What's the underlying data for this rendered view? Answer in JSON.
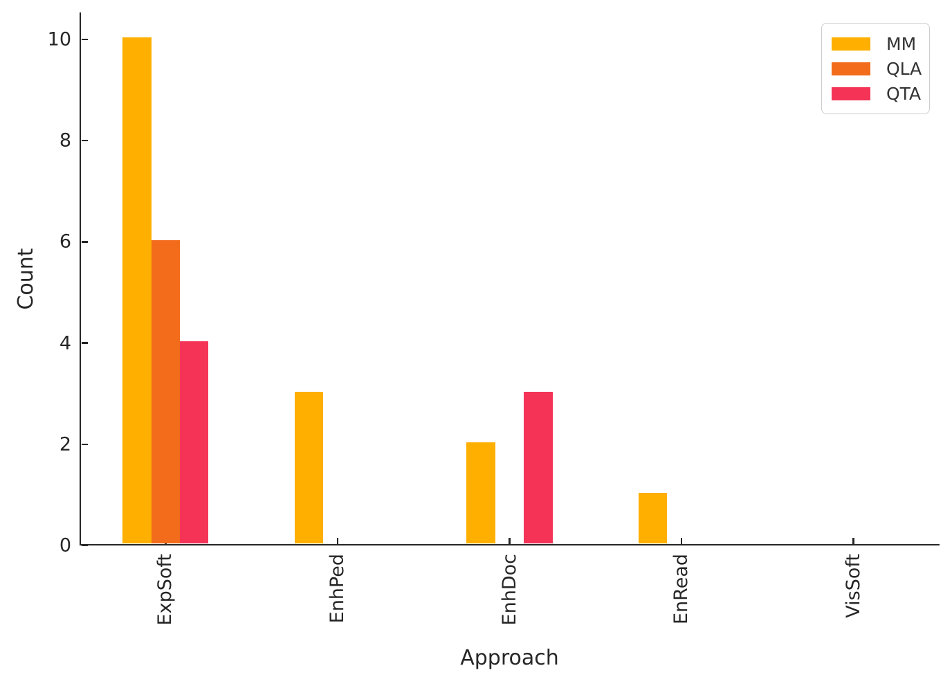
{
  "chart_data": {
    "type": "bar",
    "title": "",
    "xlabel": "Approach",
    "ylabel": "Count",
    "categories": [
      "ExpSoft",
      "EnhPed",
      "EnhDoc",
      "EnRead",
      "VisSoft"
    ],
    "series": [
      {
        "name": "MM",
        "color": "#FFAF00",
        "values": [
          10,
          3,
          2,
          1,
          0
        ]
      },
      {
        "name": "QLA",
        "color": "#F26C1B",
        "values": [
          6,
          0,
          0,
          0,
          0
        ]
      },
      {
        "name": "QTA",
        "color": "#F43357",
        "values": [
          4,
          0,
          3,
          0,
          0
        ]
      }
    ],
    "ylim": [
      0,
      10.53
    ],
    "yticks": [
      0,
      2,
      4,
      6,
      8,
      10
    ],
    "grid": false,
    "legend_position": "upper right",
    "axis_color": "#262626",
    "legend_border_color": "#cccccc"
  }
}
